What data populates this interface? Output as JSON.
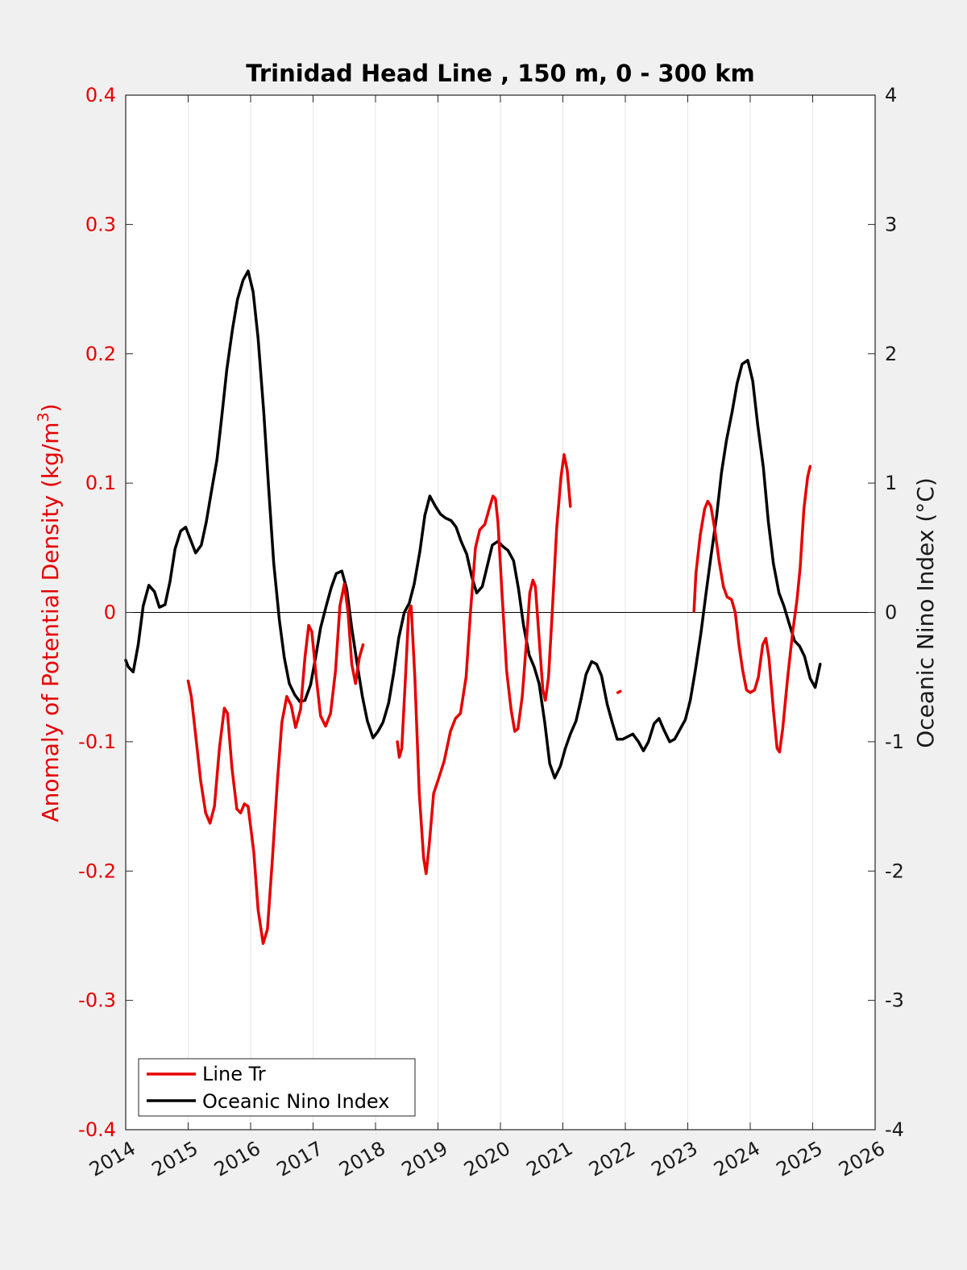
{
  "chart_data": {
    "type": "line",
    "title": "Trinidad Head Line , 150 m, 0 - 300 km",
    "ylabel_left": "Anomaly of Potential Density (kg/m",
    "ylabel_left_sup": "3",
    "ylabel_left_close": ")",
    "ylabel_right": "Oceanic Nino Index (°C)",
    "xlim": [
      2014,
      2026
    ],
    "ylim_left": [
      -0.4,
      0.4
    ],
    "ylim_right": [
      -4,
      4
    ],
    "x_ticks": [
      "2014",
      "2015",
      "2016",
      "2017",
      "2018",
      "2019",
      "2020",
      "2021",
      "2022",
      "2023",
      "2024",
      "2025",
      "2026"
    ],
    "y_left_ticks": [
      "0.4",
      "0.3",
      "0.2",
      "0.1",
      "0",
      "-0.1",
      "-0.2",
      "-0.3",
      "-0.4"
    ],
    "y_right_ticks": [
      "4",
      "3",
      "2",
      "1",
      "0",
      "-1",
      "-2",
      "-3",
      "-4"
    ],
    "grid": "vertical",
    "zero_line": true,
    "legend_position": "bottom-left",
    "colors": {
      "line_tr": "#e60000",
      "oni": "#000000",
      "left_axis": "#e60000",
      "right_axis": "#1a1a1a"
    },
    "series": [
      {
        "name": "Line Tr",
        "axis": "left",
        "segments": [
          [
            [
              2015.0,
              -0.053
            ],
            [
              2015.05,
              -0.065
            ],
            [
              2015.12,
              -0.095
            ],
            [
              2015.2,
              -0.13
            ],
            [
              2015.28,
              -0.155
            ],
            [
              2015.35,
              -0.163
            ],
            [
              2015.42,
              -0.15
            ],
            [
              2015.5,
              -0.105
            ],
            [
              2015.58,
              -0.074
            ],
            [
              2015.63,
              -0.078
            ],
            [
              2015.7,
              -0.12
            ],
            [
              2015.78,
              -0.152
            ],
            [
              2015.84,
              -0.155
            ],
            [
              2015.9,
              -0.148
            ],
            [
              2015.96,
              -0.15
            ],
            [
              2016.05,
              -0.185
            ],
            [
              2016.12,
              -0.23
            ],
            [
              2016.2,
              -0.256
            ],
            [
              2016.27,
              -0.245
            ],
            [
              2016.35,
              -0.19
            ],
            [
              2016.43,
              -0.13
            ],
            [
              2016.5,
              -0.085
            ],
            [
              2016.58,
              -0.065
            ],
            [
              2016.65,
              -0.072
            ],
            [
              2016.72,
              -0.089
            ],
            [
              2016.8,
              -0.075
            ],
            [
              2016.87,
              -0.035
            ],
            [
              2016.93,
              -0.01
            ],
            [
              2016.98,
              -0.015
            ],
            [
              2017.05,
              -0.05
            ],
            [
              2017.12,
              -0.08
            ],
            [
              2017.2,
              -0.088
            ],
            [
              2017.28,
              -0.078
            ],
            [
              2017.36,
              -0.045
            ],
            [
              2017.43,
              0.005
            ],
            [
              2017.5,
              0.022
            ],
            [
              2017.56,
              0.0
            ],
            [
              2017.62,
              -0.04
            ],
            [
              2017.68,
              -0.055
            ],
            [
              2017.74,
              -0.035
            ],
            [
              2017.8,
              -0.025
            ]
          ],
          [
            [
              2018.35,
              -0.1
            ],
            [
              2018.38,
              -0.112
            ],
            [
              2018.42,
              -0.105
            ],
            [
              2018.48,
              -0.05
            ],
            [
              2018.53,
              0.0
            ],
            [
              2018.57,
              0.005
            ],
            [
              2018.63,
              -0.05
            ],
            [
              2018.7,
              -0.14
            ],
            [
              2018.77,
              -0.19
            ],
            [
              2018.81,
              -0.202
            ],
            [
              2018.86,
              -0.18
            ],
            [
              2018.93,
              -0.14
            ],
            [
              2019.0,
              -0.13
            ],
            [
              2019.1,
              -0.115
            ],
            [
              2019.2,
              -0.092
            ],
            [
              2019.28,
              -0.082
            ],
            [
              2019.36,
              -0.078
            ],
            [
              2019.45,
              -0.05
            ],
            [
              2019.52,
              0.0
            ],
            [
              2019.6,
              0.05
            ],
            [
              2019.67,
              0.064
            ],
            [
              2019.75,
              0.068
            ],
            [
              2019.82,
              0.08
            ],
            [
              2019.88,
              0.09
            ],
            [
              2019.92,
              0.088
            ],
            [
              2019.96,
              0.07
            ],
            [
              2020.02,
              0.02
            ],
            [
              2020.1,
              -0.045
            ],
            [
              2020.17,
              -0.075
            ],
            [
              2020.23,
              -0.092
            ],
            [
              2020.28,
              -0.09
            ],
            [
              2020.35,
              -0.065
            ],
            [
              2020.42,
              -0.02
            ],
            [
              2020.47,
              0.015
            ],
            [
              2020.52,
              0.025
            ],
            [
              2020.56,
              0.02
            ],
            [
              2020.62,
              -0.02
            ],
            [
              2020.68,
              -0.06
            ],
            [
              2020.72,
              -0.068
            ],
            [
              2020.77,
              -0.05
            ],
            [
              2020.83,
              0.0
            ],
            [
              2020.9,
              0.065
            ],
            [
              2020.97,
              0.105
            ],
            [
              2021.02,
              0.122
            ],
            [
              2021.07,
              0.11
            ],
            [
              2021.12,
              0.082
            ]
          ],
          [
            [
              2021.88,
              -0.062
            ],
            [
              2021.92,
              -0.061
            ]
          ],
          [
            [
              2023.1,
              0.001
            ],
            [
              2023.13,
              0.03
            ],
            [
              2023.2,
              0.06
            ],
            [
              2023.27,
              0.08
            ],
            [
              2023.32,
              0.086
            ],
            [
              2023.37,
              0.082
            ],
            [
              2023.43,
              0.065
            ],
            [
              2023.5,
              0.04
            ],
            [
              2023.57,
              0.02
            ],
            [
              2023.63,
              0.012
            ],
            [
              2023.7,
              0.01
            ],
            [
              2023.76,
              0.0
            ],
            [
              2023.82,
              -0.025
            ],
            [
              2023.88,
              -0.045
            ],
            [
              2023.94,
              -0.06
            ],
            [
              2024.0,
              -0.062
            ],
            [
              2024.07,
              -0.06
            ],
            [
              2024.13,
              -0.05
            ],
            [
              2024.2,
              -0.025
            ],
            [
              2024.25,
              -0.02
            ],
            [
              2024.3,
              -0.035
            ],
            [
              2024.37,
              -0.075
            ],
            [
              2024.43,
              -0.105
            ],
            [
              2024.47,
              -0.108
            ],
            [
              2024.52,
              -0.09
            ],
            [
              2024.6,
              -0.05
            ],
            [
              2024.68,
              -0.015
            ],
            [
              2024.75,
              0.01
            ],
            [
              2024.8,
              0.035
            ],
            [
              2024.86,
              0.08
            ],
            [
              2024.92,
              0.105
            ],
            [
              2024.96,
              0.113
            ]
          ]
        ]
      },
      {
        "name": "Oceanic Nino Index",
        "axis": "right",
        "segments": [
          [
            [
              2014.0,
              -0.37
            ],
            [
              2014.04,
              -0.42
            ],
            [
              2014.12,
              -0.46
            ],
            [
              2014.2,
              -0.25
            ],
            [
              2014.28,
              0.05
            ],
            [
              2014.37,
              0.21
            ],
            [
              2014.46,
              0.16
            ],
            [
              2014.54,
              0.04
            ],
            [
              2014.63,
              0.06
            ],
            [
              2014.71,
              0.24
            ],
            [
              2014.79,
              0.49
            ],
            [
              2014.88,
              0.63
            ],
            [
              2014.96,
              0.66
            ],
            [
              2015.04,
              0.56
            ],
            [
              2015.12,
              0.46
            ],
            [
              2015.21,
              0.52
            ],
            [
              2015.29,
              0.7
            ],
            [
              2015.37,
              0.93
            ],
            [
              2015.46,
              1.18
            ],
            [
              2015.54,
              1.52
            ],
            [
              2015.62,
              1.88
            ],
            [
              2015.71,
              2.19
            ],
            [
              2015.79,
              2.42
            ],
            [
              2015.88,
              2.57
            ],
            [
              2015.96,
              2.64
            ],
            [
              2016.04,
              2.48
            ],
            [
              2016.12,
              2.12
            ],
            [
              2016.21,
              1.55
            ],
            [
              2016.29,
              0.95
            ],
            [
              2016.37,
              0.38
            ],
            [
              2016.46,
              -0.06
            ],
            [
              2016.54,
              -0.35
            ],
            [
              2016.62,
              -0.55
            ],
            [
              2016.71,
              -0.64
            ],
            [
              2016.79,
              -0.69
            ],
            [
              2016.87,
              -0.68
            ],
            [
              2016.96,
              -0.56
            ],
            [
              2017.04,
              -0.35
            ],
            [
              2017.12,
              -0.12
            ],
            [
              2017.21,
              0.05
            ],
            [
              2017.29,
              0.19
            ],
            [
              2017.37,
              0.3
            ],
            [
              2017.46,
              0.32
            ],
            [
              2017.54,
              0.18
            ],
            [
              2017.62,
              -0.12
            ],
            [
              2017.71,
              -0.41
            ],
            [
              2017.79,
              -0.65
            ],
            [
              2017.87,
              -0.84
            ],
            [
              2017.96,
              -0.97
            ],
            [
              2018.04,
              -0.92
            ],
            [
              2018.12,
              -0.85
            ],
            [
              2018.21,
              -0.7
            ],
            [
              2018.29,
              -0.47
            ],
            [
              2018.37,
              -0.2
            ],
            [
              2018.46,
              0.0
            ],
            [
              2018.54,
              0.07
            ],
            [
              2018.62,
              0.22
            ],
            [
              2018.71,
              0.47
            ],
            [
              2018.79,
              0.75
            ],
            [
              2018.87,
              0.9
            ],
            [
              2018.96,
              0.82
            ],
            [
              2019.04,
              0.76
            ],
            [
              2019.12,
              0.73
            ],
            [
              2019.21,
              0.71
            ],
            [
              2019.29,
              0.66
            ],
            [
              2019.37,
              0.55
            ],
            [
              2019.46,
              0.45
            ],
            [
              2019.54,
              0.28
            ],
            [
              2019.62,
              0.15
            ],
            [
              2019.71,
              0.2
            ],
            [
              2019.79,
              0.36
            ],
            [
              2019.87,
              0.52
            ],
            [
              2019.96,
              0.55
            ],
            [
              2020.04,
              0.51
            ],
            [
              2020.12,
              0.48
            ],
            [
              2020.21,
              0.4
            ],
            [
              2020.29,
              0.18
            ],
            [
              2020.37,
              -0.1
            ],
            [
              2020.46,
              -0.33
            ],
            [
              2020.54,
              -0.42
            ],
            [
              2020.62,
              -0.55
            ],
            [
              2020.71,
              -0.85
            ],
            [
              2020.79,
              -1.17
            ],
            [
              2020.87,
              -1.28
            ],
            [
              2020.96,
              -1.19
            ],
            [
              2021.04,
              -1.05
            ],
            [
              2021.12,
              -0.94
            ],
            [
              2021.21,
              -0.84
            ],
            [
              2021.29,
              -0.67
            ],
            [
              2021.37,
              -0.48
            ],
            [
              2021.46,
              -0.38
            ],
            [
              2021.54,
              -0.4
            ],
            [
              2021.62,
              -0.49
            ],
            [
              2021.71,
              -0.71
            ],
            [
              2021.79,
              -0.85
            ],
            [
              2021.87,
              -0.98
            ],
            [
              2021.96,
              -0.98
            ],
            [
              2022.04,
              -0.96
            ],
            [
              2022.12,
              -0.94
            ],
            [
              2022.21,
              -1.0
            ],
            [
              2022.29,
              -1.07
            ],
            [
              2022.37,
              -1.0
            ],
            [
              2022.46,
              -0.86
            ],
            [
              2022.54,
              -0.82
            ],
            [
              2022.62,
              -0.91
            ],
            [
              2022.71,
              -1.0
            ],
            [
              2022.79,
              -0.98
            ],
            [
              2022.87,
              -0.91
            ],
            [
              2022.96,
              -0.83
            ],
            [
              2023.04,
              -0.68
            ],
            [
              2023.12,
              -0.45
            ],
            [
              2023.21,
              -0.16
            ],
            [
              2023.29,
              0.14
            ],
            [
              2023.37,
              0.43
            ],
            [
              2023.46,
              0.74
            ],
            [
              2023.54,
              1.08
            ],
            [
              2023.62,
              1.33
            ],
            [
              2023.71,
              1.55
            ],
            [
              2023.79,
              1.77
            ],
            [
              2023.87,
              1.92
            ],
            [
              2023.96,
              1.95
            ],
            [
              2024.04,
              1.79
            ],
            [
              2024.12,
              1.45
            ],
            [
              2024.21,
              1.12
            ],
            [
              2024.29,
              0.7
            ],
            [
              2024.37,
              0.38
            ],
            [
              2024.46,
              0.15
            ],
            [
              2024.54,
              0.05
            ],
            [
              2024.62,
              -0.08
            ],
            [
              2024.71,
              -0.22
            ],
            [
              2024.79,
              -0.26
            ],
            [
              2024.87,
              -0.34
            ],
            [
              2024.96,
              -0.51
            ],
            [
              2025.04,
              -0.58
            ],
            [
              2025.12,
              -0.4
            ]
          ]
        ]
      }
    ],
    "legend": [
      "Line Tr",
      "Oceanic Nino Index"
    ]
  }
}
